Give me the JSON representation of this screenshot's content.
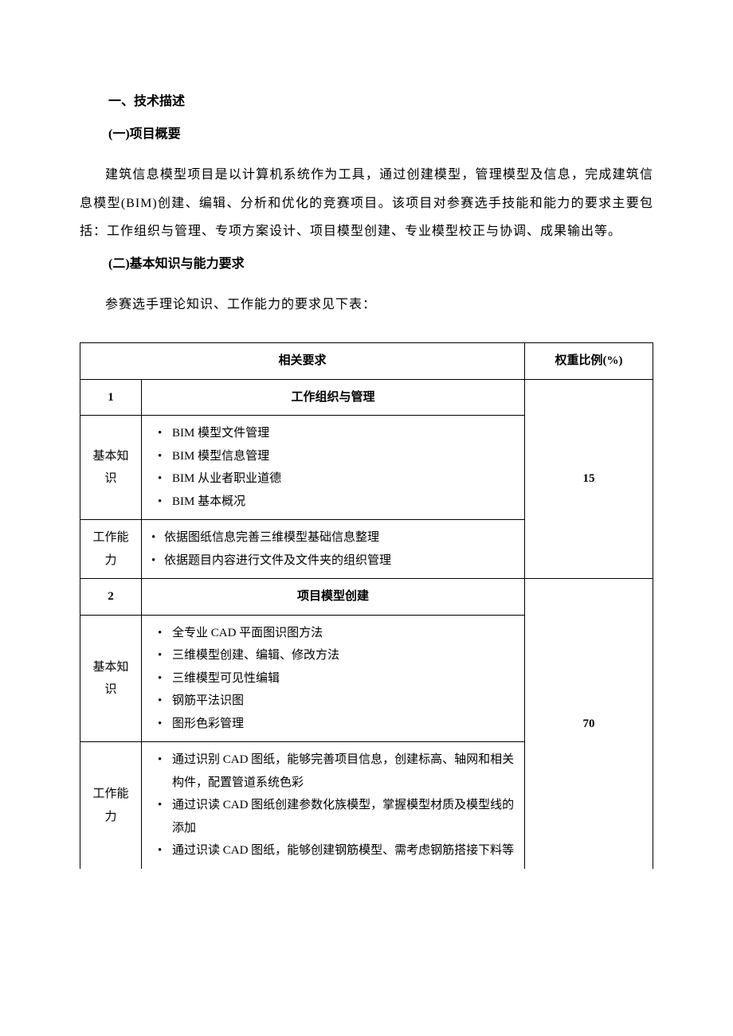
{
  "headings": {
    "h1": "一、技术描述",
    "h2a": "(一)项目概要",
    "h2b": "(二)基本知识与能力要求"
  },
  "paragraphs": {
    "overview": "建筑信息模型项目是以计算机系统作为工具，通过创建模型，管理模型及信息，完成建筑信息模型(BIM)创建、编辑、分析和优化的竞赛项目。该项目对参赛选手技能和能力的要求主要包括：工作组织与管理、专项方案设计、项目模型创建、专业模型校正与协调、成果输出等。",
    "intro": "参赛选手理论知识、工作能力的要求见下表："
  },
  "table": {
    "header": {
      "requirements": "相关要求",
      "weight": "权重比例(%)"
    },
    "labels": {
      "basic": "基本知识",
      "ability": "工作能力"
    },
    "sections": [
      {
        "num": "1",
        "title": "工作组织与管理",
        "weight": "15",
        "basic": [
          "BIM 模型文件管理",
          "BIM 模型信息管理",
          "BIM 从业者职业道德",
          "BIM 基本概况"
        ],
        "ability": [
          "依据图纸信息完善三维模型基础信息整理",
          "依据题目内容进行文件及文件夹的组织管理"
        ]
      },
      {
        "num": "2",
        "title": "项目模型创建",
        "weight": "70",
        "basic": [
          "全专业 CAD 平面图识图方法",
          "三维模型创建、编辑、修改方法",
          "三维模型可见性编辑",
          "钢筋平法识图",
          "图形色彩管理"
        ],
        "ability": [
          "通过识别 CAD 图纸，能够完善项目信息，创建标高、轴网和相关构件，配置管道系统色彩",
          "通过识读 CAD 图纸创建参数化族模型，掌握模型材质及模型线的添加",
          "通过识读 CAD 图纸，能够创建钢筋模型、需考虑钢筋搭接下料等"
        ]
      }
    ]
  }
}
